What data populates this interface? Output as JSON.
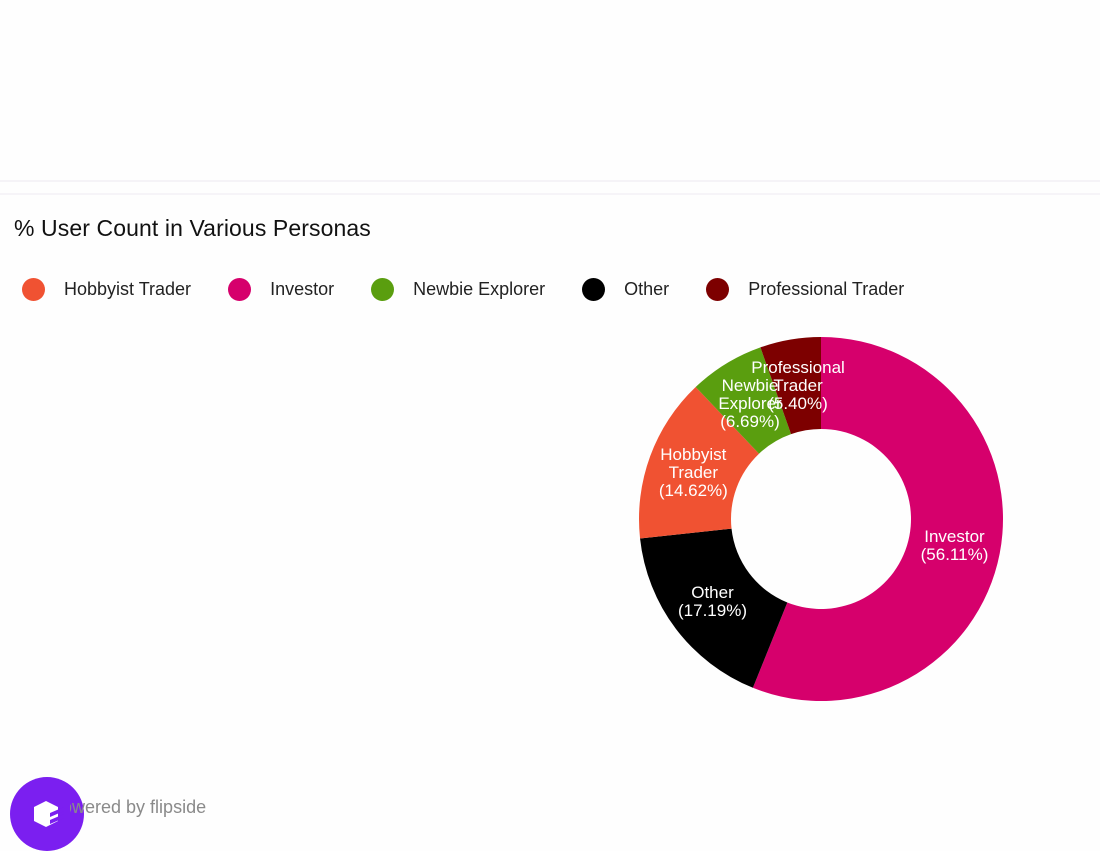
{
  "chart": {
    "title": "% User Count in Various Personas",
    "legend": [
      {
        "label": "Hobbyist Trader",
        "color": "#f05232"
      },
      {
        "label": "Investor",
        "color": "#d6006c"
      },
      {
        "label": "Newbie Explorer",
        "color": "#5a9e0f"
      },
      {
        "label": "Other",
        "color": "#000000"
      },
      {
        "label": "Professional Trader",
        "color": "#7d0000"
      }
    ]
  },
  "chart_data": {
    "type": "pie",
    "subtype": "donut",
    "title": "% User Count in Various Personas",
    "categories": [
      "Investor",
      "Other",
      "Hobbyist Trader",
      "Newbie Explorer",
      "Professional Trader"
    ],
    "values": [
      56.11,
      17.19,
      14.62,
      6.69,
      5.4
    ],
    "colors": [
      "#d6006c",
      "#000000",
      "#f05232",
      "#5a9e0f",
      "#7d0000"
    ],
    "slice_labels": [
      [
        "Investor",
        "(56.11%)"
      ],
      [
        "Other",
        "(17.19%)"
      ],
      [
        "Hobbyist",
        "Trader",
        "(14.62%)"
      ],
      [
        "Newbie",
        "Explorer",
        "(6.69%)"
      ],
      [
        "Professional",
        "Trader",
        "(5.40%)"
      ]
    ],
    "legend_order": [
      "Hobbyist Trader",
      "Investor",
      "Newbie Explorer",
      "Other",
      "Professional Trader"
    ],
    "legend_position": "top",
    "start_angle": "12 o'clock",
    "direction": "clockwise",
    "unit": "%"
  },
  "footer": {
    "text": "Powered by flipside",
    "logo_color": "#7b1ff0"
  }
}
